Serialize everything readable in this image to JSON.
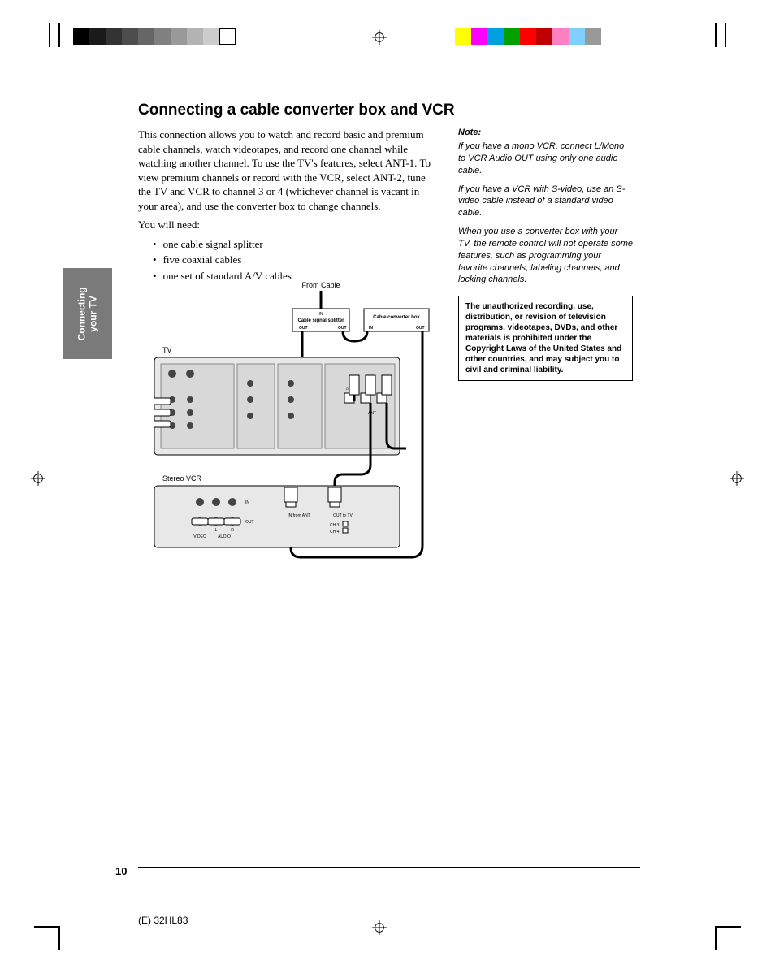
{
  "colorbar_left": [
    "#000000",
    "#1a1a1a",
    "#333333",
    "#4d4d4d",
    "#666666",
    "#808080",
    "#999999",
    "#b3b3b3",
    "#cccccc"
  ],
  "colorbar_right": [
    "#ffff00",
    "#ff00ff",
    "#00a0e0",
    "#00a000",
    "#ff0000",
    "#c00000",
    "#ff80c0",
    "#80d0ff",
    "#999999"
  ],
  "side_tab": {
    "line1": "Connecting",
    "line2": "your TV",
    "bg": "#7a7a7a",
    "fg": "#ffffff"
  },
  "heading": "Connecting a cable converter box and VCR",
  "para1": "This connection allows you to watch and record basic and premium cable channels, watch videotapes, and record one channel while watching another channel. To use the TV's features, select ANT-1. To view premium channels or record with the VCR, select ANT-2, tune the TV and VCR to channel 3 or 4 (whichever channel is vacant in your area), and use the converter box to change channels.",
  "para2": "You will need:",
  "bullets": [
    "one cable signal splitter",
    "five coaxial cables",
    "one set of standard A/V cables"
  ],
  "note_head": "Note:",
  "note1": "If you have a mono VCR, connect L/Mono to VCR Audio OUT using only one audio cable.",
  "note2": "If you have a VCR with S-video, use an S-video cable instead of a standard video cable.",
  "note3": "When you use a converter box with your TV, the remote control will not operate some features, such as programming your favorite channels, labeling channels, and locking channels.",
  "warn": "The unauthorized recording, use, distribution, or revision of television programs, videotapes, DVDs, and other materials is prohibited under the Copyright Laws of the United States and other countries, and may subject you to civil and criminal liability.",
  "diagram": {
    "from_cable": "From Cable",
    "splitter": {
      "title": "Cable signal splitter",
      "in": "IN",
      "out": "OUT"
    },
    "converter": {
      "title": "Cable converter box",
      "in": "IN",
      "out": "OUT"
    },
    "tv_label": "TV",
    "vcr_label": "Stereo VCR",
    "vcr_ports": {
      "in_ant": "IN from ANT",
      "out_tv": "OUT to TV",
      "ch3": "CH 3",
      "ch4": "CH 4",
      "video": "VIDEO",
      "audio": "AUDIO",
      "l": "L",
      "r": "R",
      "in": "IN",
      "out": "OUT"
    },
    "tv_ports": {
      "ant1": "ANT-1",
      "ant2": "ANT-2",
      "out": "OUT"
    }
  },
  "page_number": "10",
  "footer": "(E) 32HL83"
}
